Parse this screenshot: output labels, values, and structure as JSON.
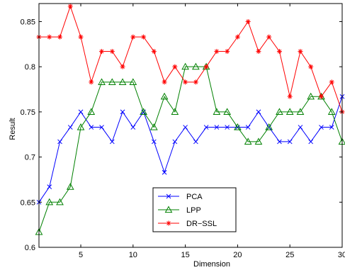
{
  "chart_data": {
    "type": "line",
    "title": "",
    "xlabel": "Dimension",
    "ylabel": "Result",
    "xlim": [
      1,
      30
    ],
    "ylim": [
      0.6,
      0.87
    ],
    "x_ticks": [
      5,
      10,
      15,
      20,
      25,
      30
    ],
    "y_ticks": [
      0.6,
      0.65,
      0.7,
      0.75,
      0.8,
      0.85
    ],
    "x_tick_labels": [
      "5",
      "10",
      "15",
      "20",
      "25",
      "30"
    ],
    "y_tick_labels": [
      "0.6",
      "0.65",
      "0.7",
      "0.75",
      "0.8",
      "0.85"
    ],
    "legend_position": "bottom-center",
    "grid": false,
    "x": [
      1,
      2,
      3,
      4,
      5,
      6,
      7,
      8,
      9,
      10,
      11,
      12,
      13,
      14,
      15,
      16,
      17,
      18,
      19,
      20,
      21,
      22,
      23,
      24,
      25,
      26,
      27,
      28,
      29,
      30
    ],
    "series": [
      {
        "name": "PCA",
        "color": "#0000ff",
        "marker": "x",
        "values": [
          0.65,
          0.667,
          0.717,
          0.733,
          0.75,
          0.733,
          0.733,
          0.717,
          0.75,
          0.733,
          0.75,
          0.717,
          0.683,
          0.717,
          0.733,
          0.717,
          0.733,
          0.733,
          0.733,
          0.733,
          0.733,
          0.75,
          0.733,
          0.717,
          0.717,
          0.733,
          0.717,
          0.733,
          0.733,
          0.767
        ]
      },
      {
        "name": "LPP",
        "color": "#008000",
        "marker": "triangle",
        "values": [
          0.617,
          0.65,
          0.65,
          0.667,
          0.733,
          0.75,
          0.783,
          0.783,
          0.783,
          0.783,
          0.75,
          0.733,
          0.767,
          0.75,
          0.8,
          0.8,
          0.8,
          0.75,
          0.75,
          0.733,
          0.717,
          0.717,
          0.733,
          0.75,
          0.75,
          0.75,
          0.767,
          0.767,
          0.75,
          0.717
        ]
      },
      {
        "name": "DR−SSL",
        "color": "#ff0000",
        "marker": "asterisk",
        "values": [
          0.833,
          0.833,
          0.833,
          0.867,
          0.833,
          0.783,
          0.817,
          0.817,
          0.8,
          0.833,
          0.833,
          0.817,
          0.783,
          0.8,
          0.783,
          0.783,
          0.8,
          0.817,
          0.817,
          0.833,
          0.85,
          0.817,
          0.833,
          0.817,
          0.767,
          0.817,
          0.8,
          0.767,
          0.783,
          0.75
        ]
      }
    ]
  }
}
